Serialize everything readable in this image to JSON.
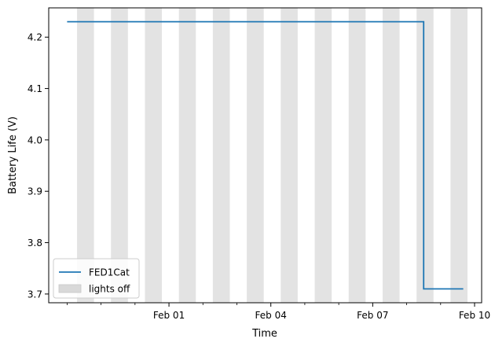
{
  "chart_data": {
    "type": "line",
    "title": "",
    "xlabel": "Time",
    "ylabel": "Battery Life (V)",
    "xlim": [
      "2022-01-28T11:00",
      "2022-02-10T05:00"
    ],
    "ylim": [
      3.683,
      4.257
    ],
    "x_ticks": [
      {
        "date": "2022-02-01",
        "label": "Feb 01"
      },
      {
        "date": "2022-02-04",
        "label": "Feb 04"
      },
      {
        "date": "2022-02-07",
        "label": "Feb 07"
      },
      {
        "date": "2022-02-10",
        "label": "Feb 10"
      }
    ],
    "x_minor_tick_dates": [
      "2022-01-29",
      "2022-01-30",
      "2022-01-31",
      "2022-02-02",
      "2022-02-03",
      "2022-02-05",
      "2022-02-06",
      "2022-02-08",
      "2022-02-09"
    ],
    "y_ticks": [
      3.7,
      3.8,
      3.9,
      4.0,
      4.1,
      4.2
    ],
    "y_tick_labels": [
      "3.7",
      "3.8",
      "3.9",
      "4.0",
      "4.1",
      "4.2"
    ],
    "series": [
      {
        "name": "FED1Cat",
        "color": "#1f77b4",
        "step": "post",
        "points": [
          {
            "x": "2022-01-29T00:00",
            "y": 4.23
          },
          {
            "x": "2022-02-08T12:00",
            "y": 4.23
          },
          {
            "x": "2022-02-08T12:00",
            "y": 3.71
          },
          {
            "x": "2022-02-09T16:00",
            "y": 3.71
          }
        ]
      }
    ],
    "shaded_regions": {
      "name": "lights off",
      "color": "#d9d9d9",
      "intervals": [
        [
          "2022-01-29T07:00",
          "2022-01-29T19:00"
        ],
        [
          "2022-01-30T07:00",
          "2022-01-30T19:00"
        ],
        [
          "2022-01-31T07:00",
          "2022-01-31T19:00"
        ],
        [
          "2022-02-01T07:00",
          "2022-02-01T19:00"
        ],
        [
          "2022-02-02T07:00",
          "2022-02-02T19:00"
        ],
        [
          "2022-02-03T07:00",
          "2022-02-03T19:00"
        ],
        [
          "2022-02-04T07:00",
          "2022-02-04T19:00"
        ],
        [
          "2022-02-05T07:00",
          "2022-02-05T19:00"
        ],
        [
          "2022-02-06T07:00",
          "2022-02-06T19:00"
        ],
        [
          "2022-02-07T07:00",
          "2022-02-07T19:00"
        ],
        [
          "2022-02-08T07:00",
          "2022-02-08T19:00"
        ],
        [
          "2022-02-09T07:00",
          "2022-02-09T19:00"
        ]
      ]
    },
    "legend": {
      "position": "lower-left",
      "entries": [
        {
          "label": "FED1Cat",
          "kind": "line",
          "color": "#1f77b4"
        },
        {
          "label": "lights off",
          "kind": "patch",
          "color": "#d9d9d9"
        }
      ]
    },
    "grid": false
  }
}
